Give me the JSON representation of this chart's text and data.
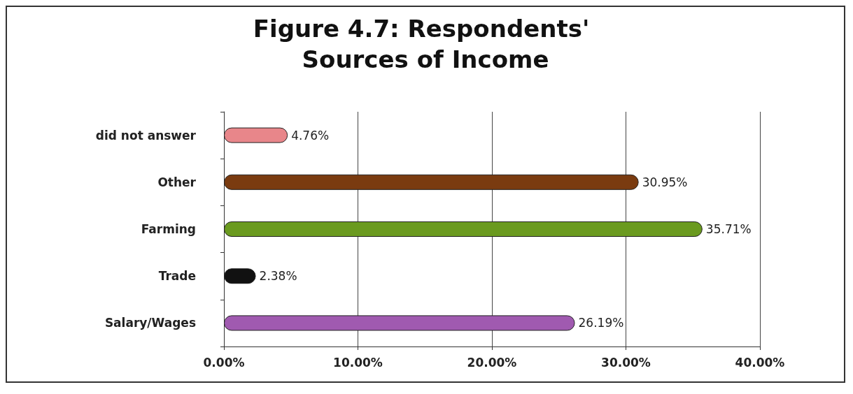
{
  "chart_data": {
    "type": "bar",
    "orientation": "horizontal",
    "title": "Figure 4.7: Respondents' Sources of Income",
    "categories": [
      "did not answer",
      "Other",
      "Farming",
      "Trade",
      "Salary/Wages"
    ],
    "values": [
      4.76,
      30.95,
      35.71,
      2.38,
      26.19
    ],
    "colors": [
      "#e8868a",
      "#7a3b10",
      "#6a9a1f",
      "#111111",
      "#a05ab0"
    ],
    "value_labels": [
      "4.76%",
      "30.95%",
      "35.71%",
      "2.38%",
      "26.19%"
    ],
    "xlim": [
      0,
      40
    ],
    "xticks": [
      {
        "value": 0,
        "label": "0.00%"
      },
      {
        "value": 10,
        "label": "10.00%"
      },
      {
        "value": 20,
        "label": "20.00%"
      },
      {
        "value": 30,
        "label": "30.00%"
      },
      {
        "value": 40,
        "label": "40.00%"
      }
    ],
    "grid": "x"
  }
}
